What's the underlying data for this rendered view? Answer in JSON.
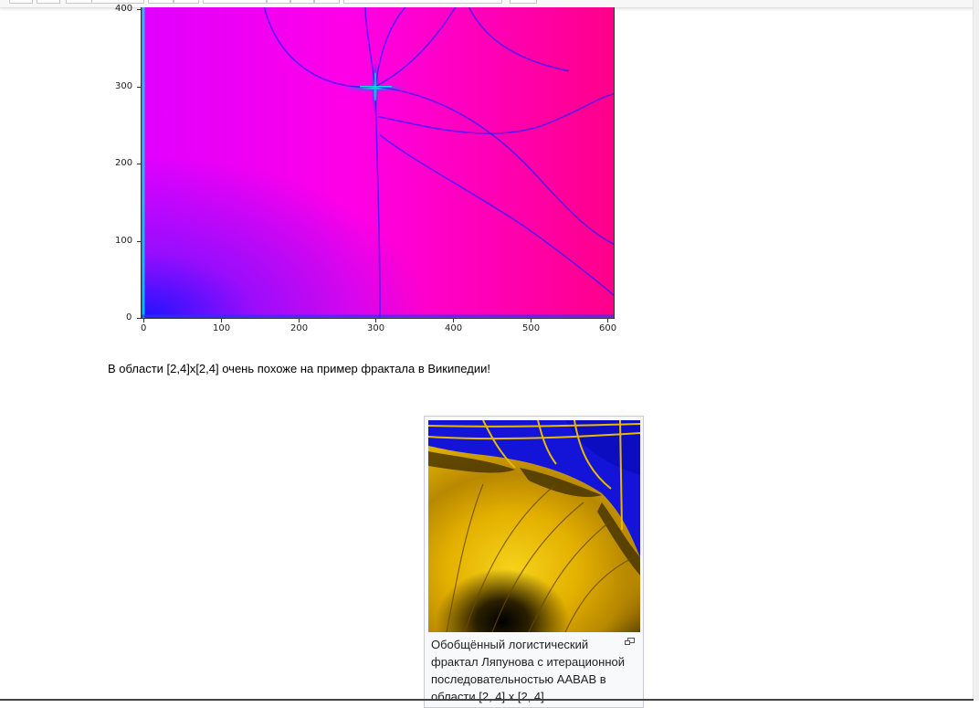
{
  "notebook": {
    "markdown_text": "В области [2,4]x[2,4] очень похоже на пример фрактала в Википедии!"
  },
  "plot": {
    "x_ticks": [
      "0",
      "100",
      "200",
      "300",
      "400",
      "500",
      "600"
    ],
    "y_ticks": [
      "0",
      "100",
      "200",
      "300",
      "400"
    ]
  },
  "chart_data": {
    "type": "heatmap",
    "xlim": [
      0,
      610
    ],
    "ylim": [
      0,
      405
    ],
    "x_ticks": [
      0,
      100,
      200,
      300,
      400,
      500,
      600
    ],
    "y_ticks": [
      0,
      100,
      200,
      300,
      400
    ],
    "colormap": "gist_ncar-like (blue → magenta → pink)",
    "grid": false
  },
  "wiki_thumb": {
    "caption": "Обобщённый логистический фрактал Ляпунова с итерационной последовательностью AABAB в области [2, 4] x [2, 4].",
    "icon": "magnify-icon"
  },
  "colors": {
    "plot_magenta": "#ff00e6",
    "plot_blue": "#1414ff",
    "plot_cyan": "#00ffdc",
    "thumb_yellow": "#e3b000",
    "thumb_blue": "#1010d0"
  }
}
